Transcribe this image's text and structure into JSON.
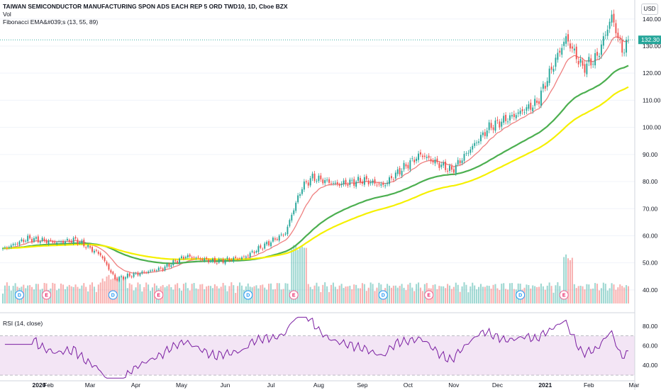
{
  "header": {
    "title": "TAIWAN SEMICONDUCTOR MANUFACTURING SPON ADS EACH REP 5 ORD TWD10, 1D, Cboe BZX",
    "vol_label": "Vol",
    "ema_label": "Fibonacci EMA&#039;s (13, 55, 89)",
    "currency": "USD"
  },
  "rsi_panel": {
    "label": "RSI (14, close)",
    "ticks": [
      "80.00",
      "60.00",
      "40.00"
    ]
  },
  "colors": {
    "up": "#26a69a",
    "down": "#ef5350",
    "ema13": "#ef8080",
    "ema55": "#4caf50",
    "ema89": "#f5f000",
    "rsi_line": "#7b1fa2",
    "rsi_band": "#f3e5f5",
    "last_price": "#26a69a"
  },
  "chart_data": {
    "type": "candlestick",
    "price_ticks": [
      "140.00",
      "130.00",
      "120.00",
      "110.00",
      "100.00",
      "90.00",
      "80.00",
      "70.00",
      "60.00",
      "50.00",
      "40.00"
    ],
    "price_range": [
      35,
      147
    ],
    "last_price": "132.30",
    "x_ticks": [
      "2020",
      "Feb",
      "Mar",
      "Apr",
      "May",
      "Jun",
      "Jul",
      "Aug",
      "Sep",
      "Oct",
      "Nov",
      "Dec",
      "2021",
      "Feb",
      "Mar"
    ],
    "anchors": [
      {
        "d": "2020-01-02",
        "c": 55.0
      },
      {
        "d": "2020-01-20",
        "c": 59.0
      },
      {
        "d": "2020-02-07",
        "c": 57.5
      },
      {
        "d": "2020-02-20",
        "c": 58.5
      },
      {
        "d": "2020-03-09",
        "c": 53.0
      },
      {
        "d": "2020-03-18",
        "c": 44.0
      },
      {
        "d": "2020-04-02",
        "c": 46.0
      },
      {
        "d": "2020-04-20",
        "c": 48.0
      },
      {
        "d": "2020-05-05",
        "c": 52.5
      },
      {
        "d": "2020-05-25",
        "c": 50.5
      },
      {
        "d": "2020-06-12",
        "c": 52.0
      },
      {
        "d": "2020-06-26",
        "c": 56.5
      },
      {
        "d": "2020-07-10",
        "c": 61.0
      },
      {
        "d": "2020-07-16",
        "c": 70.0
      },
      {
        "d": "2020-07-22",
        "c": 78.0
      },
      {
        "d": "2020-07-29",
        "c": 81.5
      },
      {
        "d": "2020-08-14",
        "c": 79.0
      },
      {
        "d": "2020-09-02",
        "c": 80.5
      },
      {
        "d": "2020-09-15",
        "c": 78.5
      },
      {
        "d": "2020-09-25",
        "c": 84.0
      },
      {
        "d": "2020-10-09",
        "c": 90.0
      },
      {
        "d": "2020-10-30",
        "c": 84.0
      },
      {
        "d": "2020-11-12",
        "c": 92.0
      },
      {
        "d": "2020-11-25",
        "c": 100.0
      },
      {
        "d": "2020-12-10",
        "c": 104.0
      },
      {
        "d": "2020-12-28",
        "c": 109.0
      },
      {
        "d": "2021-01-08",
        "c": 125.0
      },
      {
        "d": "2021-01-15",
        "c": 133.0
      },
      {
        "d": "2021-01-27",
        "c": 122.0
      },
      {
        "d": "2021-02-05",
        "c": 126.0
      },
      {
        "d": "2021-02-16",
        "c": 141.0
      },
      {
        "d": "2021-02-23",
        "c": 128.0
      },
      {
        "d": "2021-02-26",
        "c": 132.3
      }
    ],
    "ema_series": [
      {
        "name": "EMA 13",
        "period": 13
      },
      {
        "name": "EMA 55",
        "period": 55
      },
      {
        "name": "EMA 89",
        "period": 89
      }
    ],
    "rsi": {
      "period": 14,
      "band": [
        30,
        70
      ],
      "range": [
        25,
        90
      ]
    },
    "events": [
      {
        "label": "D",
        "date": "2020-01-14",
        "kind": "dividend"
      },
      {
        "label": "E",
        "date": "2020-01-31",
        "kind": "earnings"
      },
      {
        "label": "D",
        "date": "2020-03-17",
        "kind": "dividend"
      },
      {
        "label": "E",
        "date": "2020-04-16",
        "kind": "earnings"
      },
      {
        "label": "D",
        "date": "2020-06-16",
        "kind": "dividend"
      },
      {
        "label": "E",
        "date": "2020-07-16",
        "kind": "earnings"
      },
      {
        "label": "D",
        "date": "2020-09-15",
        "kind": "dividend"
      },
      {
        "label": "E",
        "date": "2020-10-15",
        "kind": "earnings"
      },
      {
        "label": "D",
        "date": "2020-12-16",
        "kind": "dividend"
      },
      {
        "label": "E",
        "date": "2021-01-14",
        "kind": "earnings"
      }
    ]
  }
}
